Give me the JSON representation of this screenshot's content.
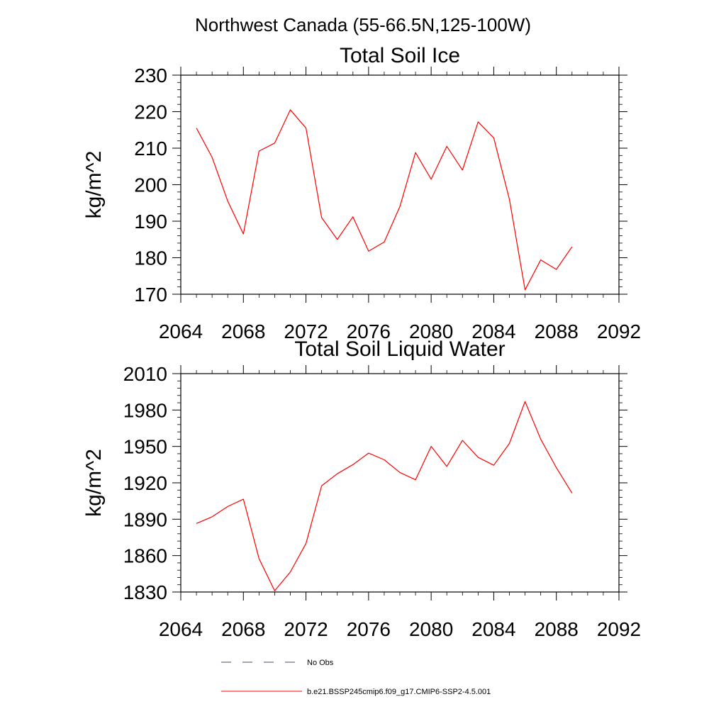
{
  "figure": {
    "suptitle": "Northwest Canada (55-66.5N,125-100W)"
  },
  "chart_data": [
    {
      "type": "line",
      "title": "Total Soil Ice",
      "xlabel": "",
      "ylabel": "kg/m^2",
      "xlim": [
        2064,
        2092
      ],
      "ylim": [
        170,
        230
      ],
      "xticks": [
        2064,
        2068,
        2072,
        2076,
        2080,
        2084,
        2088,
        2092
      ],
      "yticks": [
        170,
        180,
        190,
        200,
        210,
        220,
        230
      ],
      "grid": false,
      "series": [
        {
          "name": "b.e21.BSSP245cmip6.f09_g17.CMIP6-SSP2-4.5.001",
          "color": "#ff0000",
          "x": [
            2065,
            2066,
            2067,
            2068,
            2069,
            2070,
            2071,
            2072,
            2073,
            2074,
            2075,
            2076,
            2077,
            2078,
            2079,
            2080,
            2081,
            2082,
            2083,
            2084,
            2085,
            2086,
            2087,
            2088,
            2089
          ],
          "y": [
            215.5,
            207.5,
            195.5,
            186.5,
            209.2,
            211.4,
            220.5,
            215.5,
            191,
            185,
            191.2,
            181.8,
            184.3,
            194,
            208.8,
            201.5,
            210.5,
            204,
            217.2,
            212.8,
            196,
            171.2,
            179.4,
            176.8,
            183
          ]
        }
      ]
    },
    {
      "type": "line",
      "title": "Total Soil Liquid Water",
      "xlabel": "",
      "ylabel": "kg/m^2",
      "xlim": [
        2064,
        2092
      ],
      "ylim": [
        1830,
        2010
      ],
      "xticks": [
        2064,
        2068,
        2072,
        2076,
        2080,
        2084,
        2088,
        2092
      ],
      "yticks": [
        1830,
        1860,
        1890,
        1920,
        1950,
        1980,
        2010
      ],
      "grid": false,
      "series": [
        {
          "name": "b.e21.BSSP245cmip6.f09_g17.CMIP6-SSP2-4.5.001",
          "color": "#ff0000",
          "x": [
            2065,
            2066,
            2067,
            2068,
            2069,
            2070,
            2071,
            2072,
            2073,
            2074,
            2075,
            2076,
            2077,
            2078,
            2079,
            2080,
            2081,
            2082,
            2083,
            2084,
            2085,
            2086,
            2087,
            2088,
            2089
          ],
          "y": [
            1886.5,
            1892,
            1900.5,
            1906.5,
            1857.5,
            1831,
            1846.5,
            1870,
            1917.5,
            1927.5,
            1935,
            1944.5,
            1939,
            1928.5,
            1922.5,
            1950,
            1933.5,
            1955,
            1941,
            1934.5,
            1952.5,
            1987,
            1956,
            1932.5,
            1911.5
          ]
        }
      ]
    }
  ],
  "legend": {
    "placement": "bottom",
    "entries": [
      {
        "label": "No Obs",
        "style": "dashed",
        "color": "#4a4a6a"
      },
      {
        "label": "b.e21.BSSP245cmip6.f09_g17.CMIP6-SSP2-4.5.001",
        "style": "solid",
        "color": "#ff0000"
      }
    ]
  }
}
